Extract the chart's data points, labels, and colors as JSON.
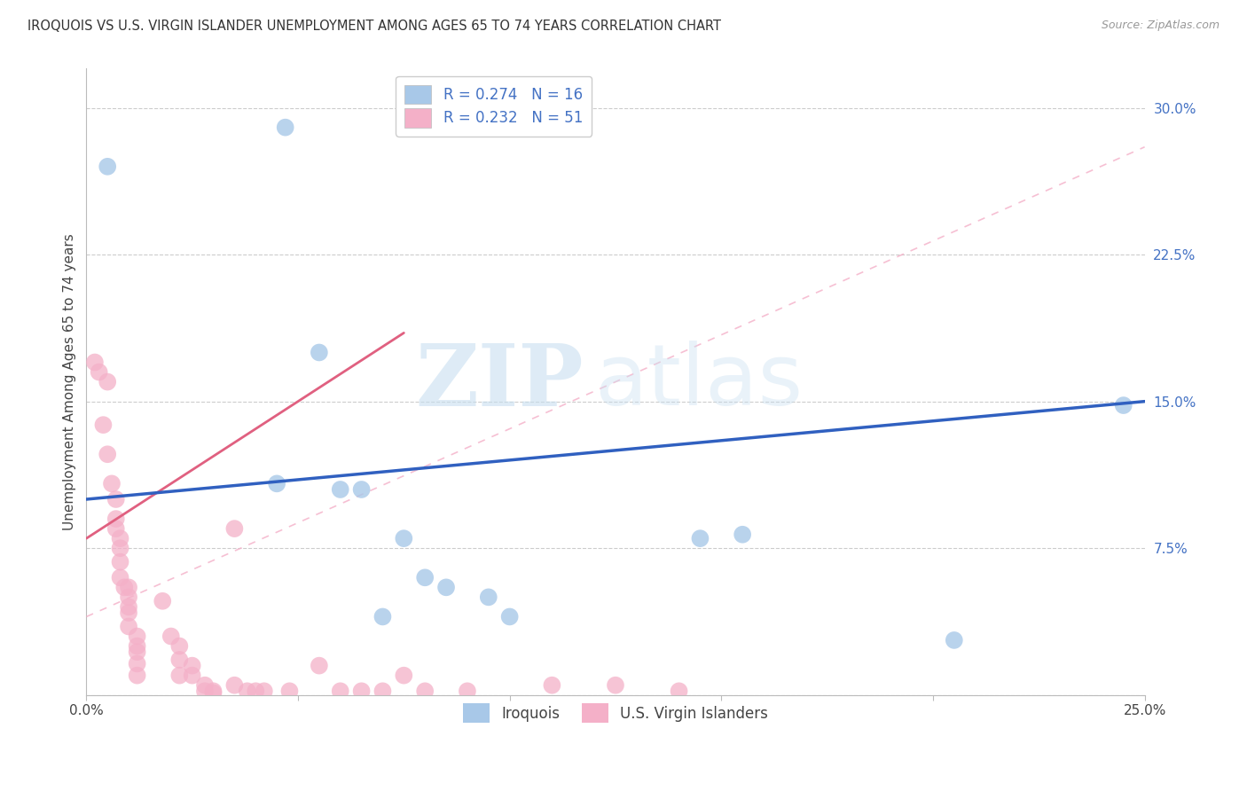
{
  "title": "IROQUOIS VS U.S. VIRGIN ISLANDER UNEMPLOYMENT AMONG AGES 65 TO 74 YEARS CORRELATION CHART",
  "source": "Source: ZipAtlas.com",
  "ylabel": "Unemployment Among Ages 65 to 74 years",
  "xlim": [
    0.0,
    0.25
  ],
  "ylim": [
    0.0,
    0.32
  ],
  "ytick_vals": [
    0.0,
    0.075,
    0.15,
    0.225,
    0.3
  ],
  "ytick_labels": [
    "",
    "7.5%",
    "15.0%",
    "22.5%",
    "30.0%"
  ],
  "xtick_vals": [
    0.0,
    0.05,
    0.1,
    0.15,
    0.2,
    0.25
  ],
  "xtick_labels": [
    "0.0%",
    "",
    "",
    "",
    "",
    "25.0%"
  ],
  "legend_iroquois_R": "R = 0.274",
  "legend_iroquois_N": "N = 16",
  "legend_vi_R": "R = 0.232",
  "legend_vi_N": "N = 51",
  "iroquois_color": "#a8c8e8",
  "vi_color": "#f4b0c8",
  "iroquois_line_color": "#3060c0",
  "vi_line_color": "#e06080",
  "watermark_zip": "ZIP",
  "watermark_atlas": "atlas",
  "background_color": "#ffffff",
  "grid_color": "#cccccc",
  "iroquois_scatter": [
    [
      0.005,
      0.27
    ],
    [
      0.045,
      0.108
    ],
    [
      0.047,
      0.29
    ],
    [
      0.055,
      0.175
    ],
    [
      0.06,
      0.105
    ],
    [
      0.065,
      0.105
    ],
    [
      0.07,
      0.04
    ],
    [
      0.075,
      0.08
    ],
    [
      0.08,
      0.06
    ],
    [
      0.085,
      0.055
    ],
    [
      0.095,
      0.05
    ],
    [
      0.1,
      0.04
    ],
    [
      0.145,
      0.08
    ],
    [
      0.155,
      0.082
    ],
    [
      0.205,
      0.028
    ],
    [
      0.245,
      0.148
    ]
  ],
  "vi_scatter": [
    [
      0.002,
      0.17
    ],
    [
      0.003,
      0.165
    ],
    [
      0.004,
      0.138
    ],
    [
      0.005,
      0.16
    ],
    [
      0.005,
      0.123
    ],
    [
      0.006,
      0.108
    ],
    [
      0.007,
      0.1
    ],
    [
      0.007,
      0.09
    ],
    [
      0.007,
      0.085
    ],
    [
      0.008,
      0.08
    ],
    [
      0.008,
      0.075
    ],
    [
      0.008,
      0.068
    ],
    [
      0.008,
      0.06
    ],
    [
      0.009,
      0.055
    ],
    [
      0.01,
      0.055
    ],
    [
      0.01,
      0.05
    ],
    [
      0.01,
      0.045
    ],
    [
      0.01,
      0.042
    ],
    [
      0.01,
      0.035
    ],
    [
      0.012,
      0.03
    ],
    [
      0.012,
      0.025
    ],
    [
      0.012,
      0.022
    ],
    [
      0.012,
      0.016
    ],
    [
      0.012,
      0.01
    ],
    [
      0.018,
      0.048
    ],
    [
      0.02,
      0.03
    ],
    [
      0.022,
      0.025
    ],
    [
      0.022,
      0.018
    ],
    [
      0.022,
      0.01
    ],
    [
      0.025,
      0.015
    ],
    [
      0.025,
      0.01
    ],
    [
      0.028,
      0.005
    ],
    [
      0.028,
      0.002
    ],
    [
      0.03,
      0.002
    ],
    [
      0.03,
      0.001
    ],
    [
      0.035,
      0.085
    ],
    [
      0.035,
      0.005
    ],
    [
      0.038,
      0.002
    ],
    [
      0.04,
      0.002
    ],
    [
      0.042,
      0.002
    ],
    [
      0.048,
      0.002
    ],
    [
      0.055,
      0.015
    ],
    [
      0.06,
      0.002
    ],
    [
      0.065,
      0.002
    ],
    [
      0.07,
      0.002
    ],
    [
      0.075,
      0.01
    ],
    [
      0.08,
      0.002
    ],
    [
      0.09,
      0.002
    ],
    [
      0.11,
      0.005
    ],
    [
      0.125,
      0.005
    ],
    [
      0.14,
      0.002
    ]
  ],
  "blue_line": [
    [
      0.0,
      0.1
    ],
    [
      0.25,
      0.15
    ]
  ],
  "pink_line": [
    [
      0.0,
      0.08
    ],
    [
      0.075,
      0.185
    ]
  ],
  "pink_dashed_line": [
    [
      0.0,
      0.04
    ],
    [
      0.25,
      0.28
    ]
  ]
}
